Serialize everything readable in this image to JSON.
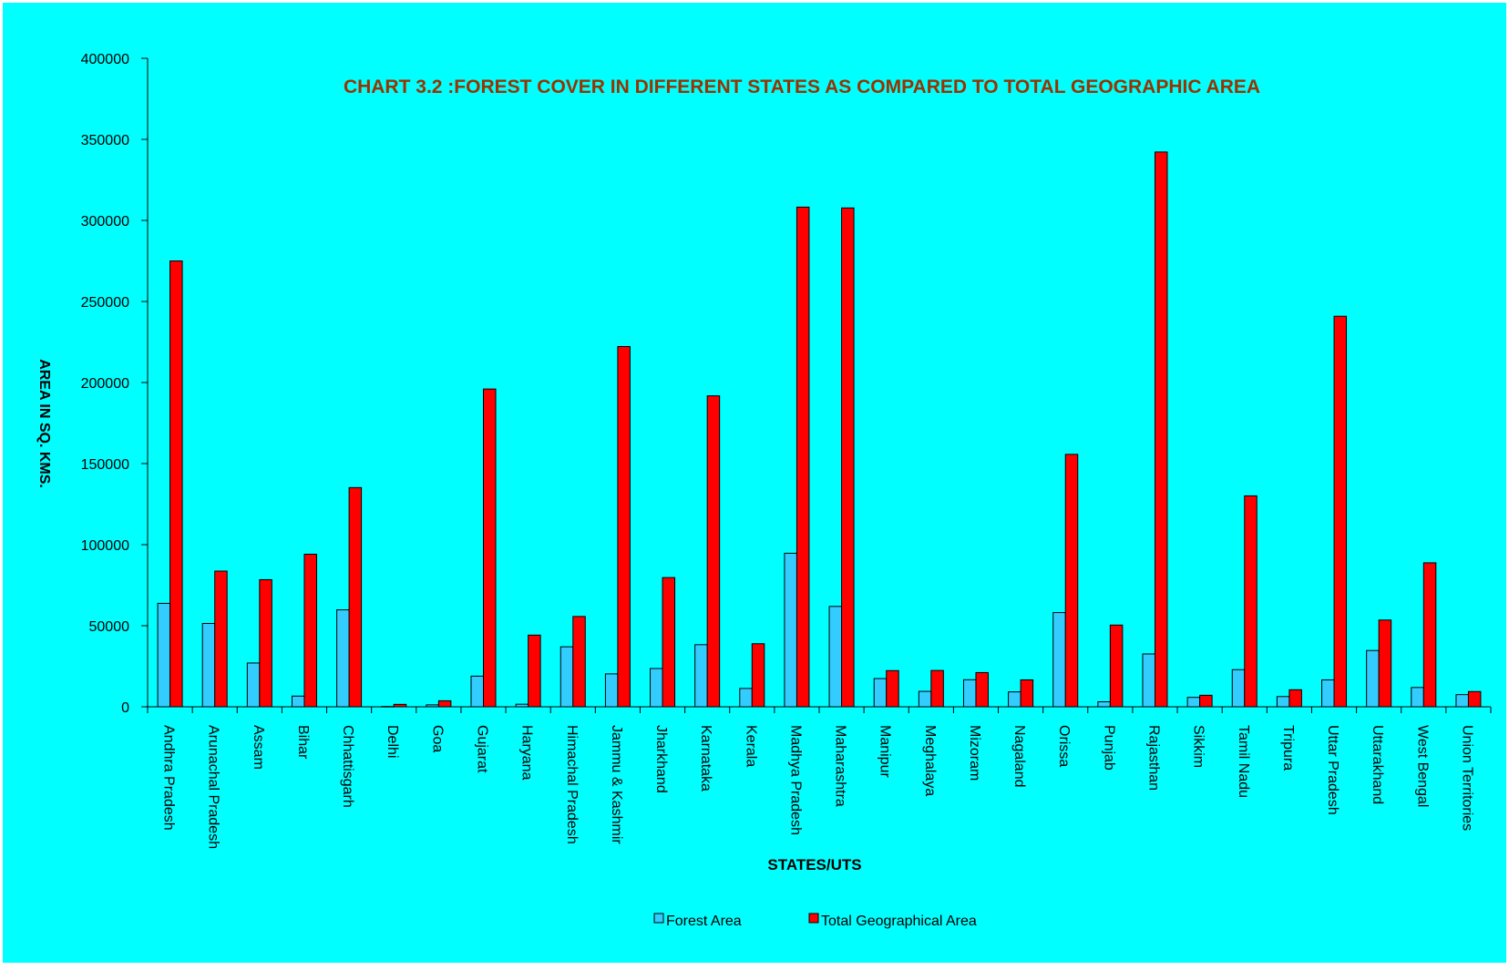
{
  "chart_data": {
    "type": "bar",
    "title": "CHART 3.2 :FOREST COVER IN DIFFERENT STATES AS COMPARED TO TOTAL GEOGRAPHIC AREA",
    "xlabel": "STATES/UTS",
    "ylabel": "AREA IN SQ. KMS.",
    "ylim": [
      0,
      400000
    ],
    "yticks": [
      "0",
      "50000",
      "100000",
      "150000",
      "200000",
      "250000",
      "300000",
      "350000",
      "400000"
    ],
    "grid": false,
    "legend_position": "bottom",
    "categories": [
      "Andhra Pradesh",
      "Arunachal Pradesh",
      "Assam",
      "Bihar",
      "Chhattisgarh",
      "Delhi",
      "Goa",
      "Gujarat",
      "Haryana",
      "Himachal Pradesh",
      "Jammu & Kashmir",
      "Jharkhand",
      "Karnataka",
      "Kerala",
      "Madhya Pradesh",
      "Maharashtra",
      "Manipur",
      "Meghalaya",
      "Mizoram",
      "Nagaland",
      "Orissa",
      "Punjab",
      "Rajasthan",
      "Sikkim",
      "Tamil Nadu",
      "Tripura",
      "Uttar Pradesh",
      "Uttarakhand",
      "West Bengal",
      "Union Territories"
    ],
    "series": [
      {
        "name": "Forest Area",
        "color": "#33CCFF",
        "values": [
          63800,
          51400,
          27000,
          6600,
          59800,
          200,
          1200,
          18900,
          1600,
          37000,
          20300,
          23600,
          38300,
          11300,
          94700,
          61900,
          17400,
          9500,
          16700,
          9200,
          58100,
          3100,
          32600,
          5800,
          22900,
          6300,
          16600,
          34700,
          11900,
          7500
        ]
      },
      {
        "name": "Total Geographical Area",
        "color": "#FF0000",
        "values": [
          275000,
          83700,
          78400,
          94100,
          135200,
          1500,
          3700,
          196000,
          44200,
          55700,
          222200,
          79700,
          191800,
          38900,
          308200,
          307700,
          22300,
          22400,
          21100,
          16600,
          155700,
          50400,
          342200,
          7100,
          130100,
          10500,
          240900,
          53500,
          88800,
          9400
        ]
      }
    ]
  },
  "colors": {
    "background": "#00FFFF",
    "frame": "#FFFFFF",
    "title": "#993300",
    "bar_outline": "#000000"
  }
}
